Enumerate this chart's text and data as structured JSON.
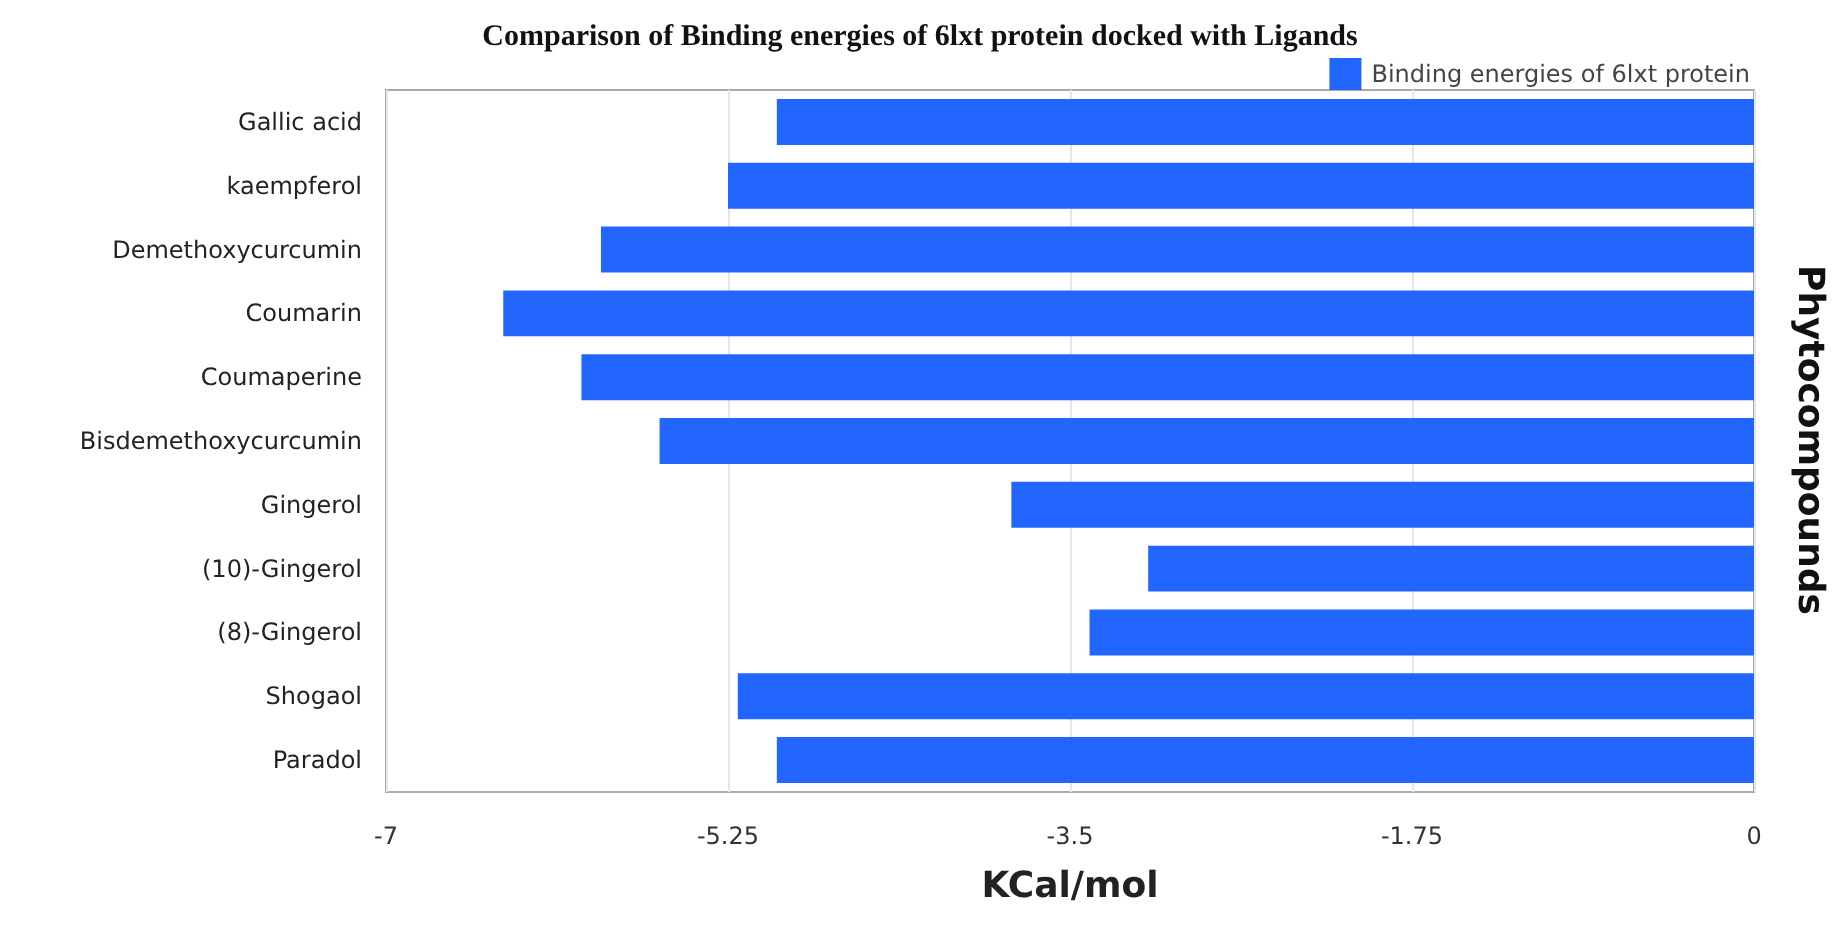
{
  "chart_data": {
    "type": "bar",
    "orientation": "horizontal",
    "title": "Comparison of Binding energies of 6lxt protein docked with Ligands",
    "xlabel": "KCal/mol",
    "ylabel": "Phytocompounds",
    "categories": [
      "Gallic acid",
      "kaempferol",
      "Demethoxycurcumin",
      "Coumarin",
      "Coumaperine",
      "Bisdemethoxycurcumin",
      "Gingerol",
      "(10)-Gingerol",
      "(8)-Gingerol",
      "Shogaol",
      "Paradol"
    ],
    "series": [
      {
        "name": "Binding energies of 6lxt protein",
        "color": "#2366ff",
        "values": [
          -5.0,
          -5.25,
          -5.9,
          -6.4,
          -6.0,
          -5.6,
          -3.8,
          -3.1,
          -3.4,
          -5.2,
          -5.0
        ]
      }
    ],
    "xlim": [
      -7,
      0
    ],
    "xticks": [
      -7,
      -5.25,
      -3.5,
      -1.75,
      0
    ],
    "grid": "x",
    "legend": "top right"
  }
}
